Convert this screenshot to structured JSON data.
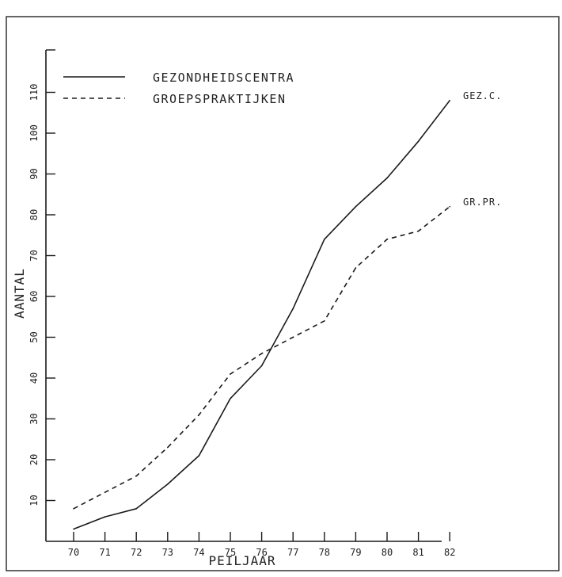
{
  "chart_data": {
    "type": "line",
    "title": "",
    "xlabel": "PEILJAAR",
    "ylabel": "AANTAL",
    "x": [
      "70",
      "71",
      "72",
      "73",
      "74",
      "75",
      "76",
      "77",
      "78",
      "79",
      "80",
      "81",
      "82"
    ],
    "yticks": [
      "10",
      "20",
      "30",
      "40",
      "50",
      "60",
      "70",
      "80",
      "90",
      "100",
      "110"
    ],
    "ylim": [
      0,
      120
    ],
    "grid": false,
    "legend_position": "top-left",
    "series": [
      {
        "name": "GEZONDHEIDSCENTRA",
        "end_label": "GEZ.C.",
        "style": "solid",
        "values": [
          3,
          6,
          8,
          14,
          21,
          35,
          43,
          57,
          74,
          82,
          89,
          98,
          108
        ]
      },
      {
        "name": "GROEPSPRAKTIJKEN",
        "end_label": "GR.PR.",
        "style": "dashed",
        "values": [
          8,
          12,
          16,
          23,
          31,
          41,
          46,
          50,
          54,
          67,
          74,
          76,
          82
        ]
      }
    ],
    "line_color": "#1a1a1a"
  }
}
